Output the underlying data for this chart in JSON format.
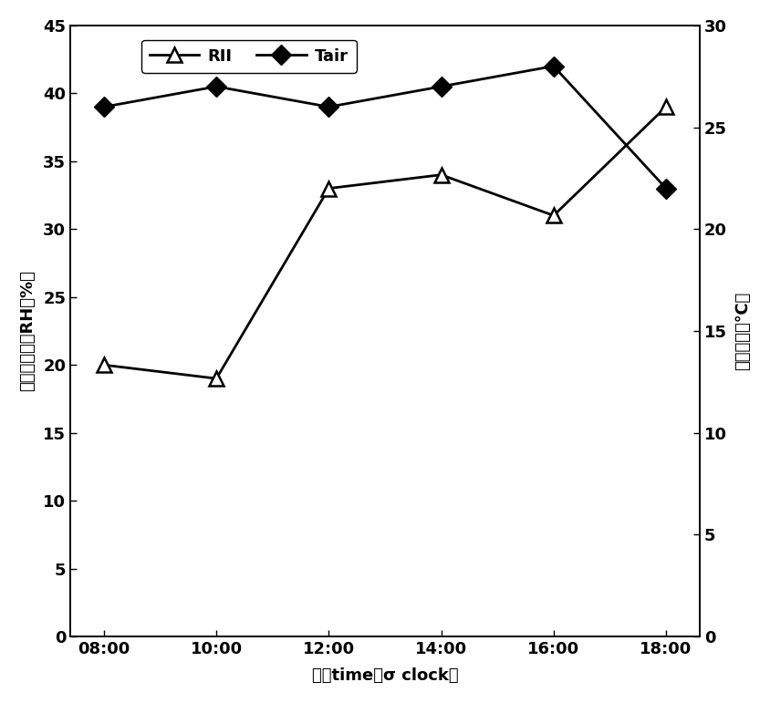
{
  "x_labels": [
    "08:00",
    "10:00",
    "12:00",
    "14:00",
    "16:00",
    "18:00"
  ],
  "x_values": [
    0,
    1,
    2,
    3,
    4,
    5
  ],
  "RH_values": [
    20.0,
    19.0,
    33.0,
    34.0,
    31.0,
    39.0
  ],
  "Tair_values": [
    26.0,
    27.0,
    26.0,
    27.0,
    28.0,
    22.0
  ],
  "RH_label": "RII",
  "Tair_label": "Tair",
  "ylabel_left": "空气相对湿度RH（%）",
  "ylabel_right": "空气温度（℃）",
  "xlabel": "时间time（σ clock）",
  "ylim_left": [
    0,
    45
  ],
  "ylim_right": [
    0,
    30
  ],
  "yticks_left": [
    0,
    5,
    10,
    15,
    20,
    25,
    30,
    35,
    40,
    45
  ],
  "yticks_right": [
    0,
    5,
    10,
    15,
    20,
    25,
    30
  ],
  "line_color": "#000000",
  "bg_color": "#ffffff",
  "legend_fontsize": 13,
  "axis_fontsize": 13,
  "tick_fontsize": 13
}
